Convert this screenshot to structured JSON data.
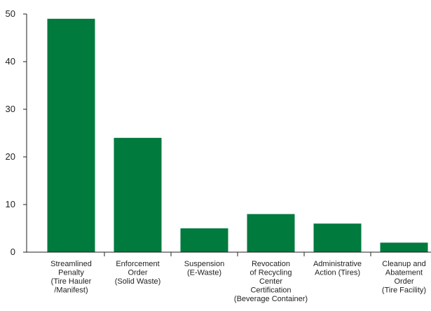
{
  "chart_data": {
    "type": "bar",
    "title": "",
    "xlabel": "",
    "ylabel": "",
    "ylim": [
      0,
      50
    ],
    "yticks": [
      0,
      10,
      20,
      30,
      40,
      50
    ],
    "grid": false,
    "bar_color": "#007a3d",
    "categories": [
      [
        "Streamlined",
        "Penalty",
        "(Tire Hauler",
        "/Manifest)"
      ],
      [
        "Enforcement",
        "Order",
        "(Solid Waste)"
      ],
      [
        "Suspension",
        "(E-Waste)"
      ],
      [
        "Revocation",
        "of Recycling",
        "Center",
        "Certification",
        "(Beverage Container)"
      ],
      [
        "Administrative",
        "Action (Tires)"
      ],
      [
        "Cleanup and",
        "Abatement",
        "Order",
        "(Tire Facility)"
      ]
    ],
    "values": [
      49,
      24,
      5,
      8,
      6,
      2
    ]
  }
}
